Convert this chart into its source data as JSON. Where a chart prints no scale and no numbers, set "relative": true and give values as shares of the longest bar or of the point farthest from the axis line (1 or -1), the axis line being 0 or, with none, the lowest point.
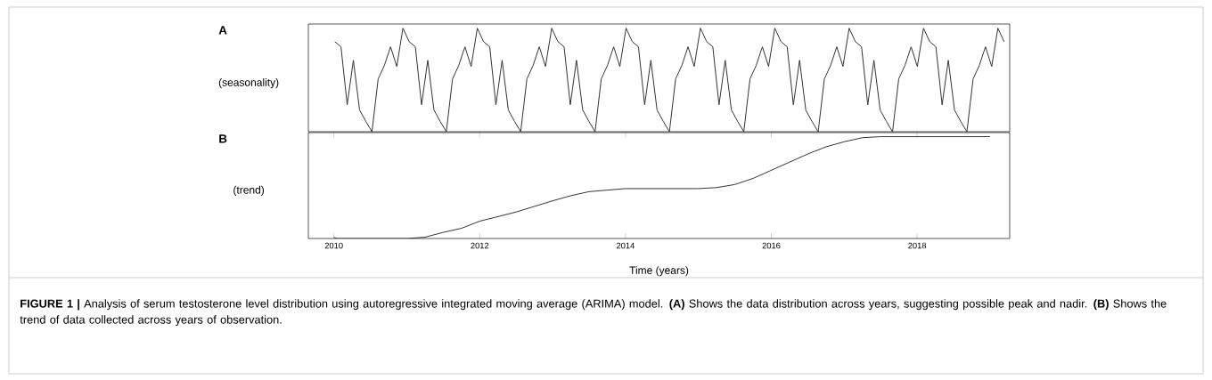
{
  "chart_data": [
    {
      "type": "line",
      "annotations": [
        "A"
      ],
      "ylabel": "(seasonality)",
      "relative": true,
      "categories": [
        null,
        null,
        null,
        null,
        null,
        null,
        null,
        null,
        null,
        null,
        null,
        null,
        null,
        null,
        null,
        null,
        null,
        null,
        null,
        null,
        null,
        null,
        null,
        null,
        null,
        null,
        null,
        null,
        null,
        null,
        null,
        null,
        null,
        null,
        null,
        null,
        null,
        null,
        null,
        null,
        null,
        null,
        null,
        null,
        null,
        null,
        null,
        null,
        null,
        null,
        null,
        null,
        null,
        null,
        null,
        null,
        null,
        null,
        null,
        null,
        null,
        null,
        null,
        null,
        null,
        null,
        null,
        null,
        null,
        null,
        null,
        null,
        null,
        null,
        null,
        null,
        null,
        null,
        null,
        null,
        null,
        null,
        null,
        null,
        null,
        null,
        null,
        null,
        null,
        null,
        null,
        null,
        null,
        null,
        null,
        null,
        null,
        null,
        null,
        null,
        null,
        null,
        null,
        null,
        null,
        null,
        null,
        null,
        null
      ],
      "series": [
        {
          "color": "#333333",
          "values": [
            0.87,
            0.82,
            0.26,
            0.69,
            0.21,
            0.1,
            0,
            0.51,
            0.64,
            0.82,
            0.63,
            1.0,
            0.87,
            0.82,
            0.26,
            0.69,
            0.21,
            0.1,
            0,
            0.51,
            0.64,
            0.82,
            0.63,
            1.0,
            0.87,
            0.82,
            0.26,
            0.69,
            0.21,
            0.1,
            0,
            0.51,
            0.64,
            0.82,
            0.63,
            1.0,
            0.87,
            0.82,
            0.26,
            0.69,
            0.21,
            0.1,
            0,
            0.51,
            0.64,
            0.82,
            0.63,
            1.0,
            0.87,
            0.82,
            0.26,
            0.69,
            0.21,
            0.1,
            0,
            0.51,
            0.64,
            0.82,
            0.63,
            1.0,
            0.87,
            0.82,
            0.26,
            0.69,
            0.21,
            0.1,
            0,
            0.51,
            0.64,
            0.82,
            0.63,
            1.0,
            0.87,
            0.82,
            0.26,
            0.69,
            0.21,
            0.1,
            0,
            0.51,
            0.64,
            0.82,
            0.63,
            1.0,
            0.87,
            0.82,
            0.26,
            0.69,
            0.21,
            0.1,
            0,
            0.51,
            0.64,
            0.82,
            0.63,
            1.0,
            0.87,
            0.82,
            0.26,
            0.69,
            0.21,
            0.1,
            0,
            0.51,
            0.64,
            0.82,
            0.63,
            1.0,
            0.87
          ]
        }
      ]
    },
    {
      "type": "line",
      "ylabel": "(trend)",
      "xlabel": "Time (years)",
      "relative": true,
      "xlim": [
        2009.65,
        2019.27
      ],
      "xticks": [
        2010,
        2012,
        2014,
        2016,
        2018
      ],
      "x": [
        2010.0,
        2010.05,
        2011.0,
        2011.25,
        2011.5,
        2011.75,
        2012.0,
        2012.5,
        2013.0,
        2013.25,
        2013.5,
        2013.75,
        2014.0,
        2015.0,
        2015.25,
        2015.5,
        2015.75,
        2016.0,
        2016.25,
        2016.5,
        2016.75,
        2017.0,
        2017.25,
        2017.5,
        2019.0
      ],
      "series": [
        {
          "color": "#333333",
          "values": [
            0.01,
            0,
            0,
            0.013,
            0.06,
            0.1,
            0.17,
            0.26,
            0.37,
            0.42,
            0.46,
            0.475,
            0.49,
            0.49,
            0.5,
            0.53,
            0.59,
            0.67,
            0.75,
            0.83,
            0.9,
            0.95,
            0.99,
            1.0,
            1.0
          ]
        }
      ],
      "annotations": [
        "B",
        "**FIGURE 1 |** Analysis of serum testosterone level distribution using autoregressive integrated moving average (ARIMA) model. **(A)** Shows the data distribution across years, suggesting possible peak and nadir. **(B)** Shows the trend of data collected across years of observation."
      ]
    }
  ]
}
